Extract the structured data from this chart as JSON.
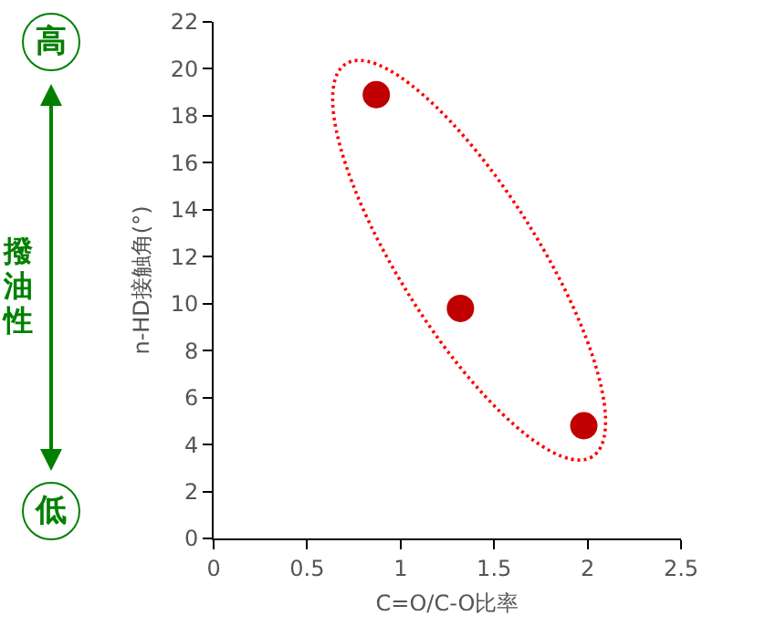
{
  "chart_data": {
    "type": "scatter",
    "xlabel": "C=O/C-O比率",
    "ylabel": "n-HD接触角(°)",
    "annotations": [
      "高",
      "撥油性",
      "低"
    ],
    "x": [
      0.87,
      1.32,
      1.98
    ],
    "series": [
      {
        "color": "#c00000",
        "values": [
          18.9,
          9.8,
          4.8
        ]
      }
    ],
    "xlim": [
      0,
      2.5
    ],
    "xticks": [
      0,
      0.5,
      1,
      1.5,
      2,
      2.5
    ],
    "ylim": [
      0,
      22
    ],
    "yticks": [
      0,
      2,
      4,
      6,
      8,
      10,
      12,
      14,
      16,
      18,
      20,
      22
    ],
    "grid": false,
    "marker": "circle"
  }
}
